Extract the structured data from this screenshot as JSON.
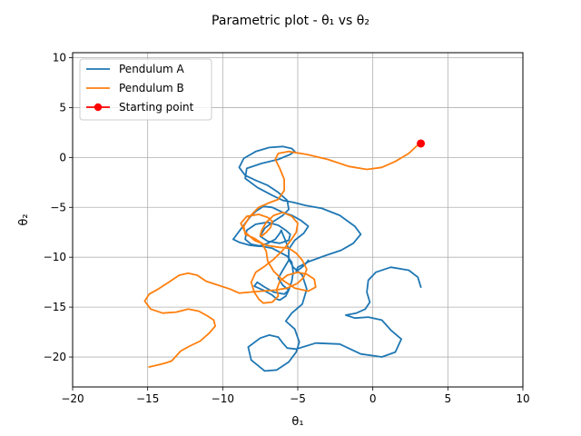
{
  "chart_data": {
    "type": "line",
    "title": "Parametric plot - θ₁ vs θ₂",
    "xlabel": "θ₁",
    "ylabel": "θ₂",
    "xlim": [
      -20,
      10
    ],
    "ylim": [
      -23,
      10.5
    ],
    "x_ticks": [
      -20,
      -15,
      -10,
      -5,
      0,
      5,
      10
    ],
    "y_ticks": [
      -20,
      -15,
      -10,
      -5,
      0,
      5,
      10
    ],
    "x_tick_labels": [
      "−20",
      "−15",
      "−10",
      "−5",
      "0",
      "5",
      "10"
    ],
    "y_tick_labels": [
      "−20",
      "−15",
      "−10",
      "−5",
      "0",
      "5",
      "10"
    ],
    "grid": true,
    "legend_position": "top-left",
    "series": [
      {
        "name": "Pendulum A",
        "color": "#1f77b4",
        "x": [
          3.2,
          3.0,
          2.4,
          1.2,
          0.2,
          -0.3,
          -0.4,
          -0.2,
          -0.5,
          -1.1,
          -1.8,
          -1.2,
          -0.3,
          0.6,
          1.2,
          1.9,
          1.5,
          0.6,
          -0.8,
          -2.2,
          -3.8,
          -5.1,
          -5.7,
          -6.0,
          -6.3,
          -6.9,
          -7.5,
          -8.3,
          -8.1,
          -7.2,
          -6.4,
          -5.6,
          -5.1,
          -4.9,
          -5.2,
          -5.8,
          -5.4,
          -4.7,
          -4.4,
          -4.7,
          -5.3,
          -5.6,
          -5.6,
          -5.2,
          -4.6,
          -4.3,
          -4.8,
          -5.4,
          -6.0,
          -6.7,
          -7.3,
          -7.8,
          -8.2,
          -8.7,
          -9.1,
          -9.3,
          -8.9,
          -8.2,
          -7.6,
          -7.0,
          -6.5,
          -6.2,
          -6.1,
          -6.0,
          -5.8,
          -5.6,
          -5.6,
          -6.0,
          -6.3,
          -6.0,
          -5.6,
          -5.9,
          -6.6,
          -7.2,
          -7.7,
          -7.9,
          -7.3,
          -6.7,
          -6.4,
          -6.2,
          -5.8,
          -5.6,
          -5.4,
          -5.3,
          -5.4,
          -5.7,
          -6.2,
          -6.7,
          -7.4,
          -8.1,
          -8.5,
          -8.4,
          -7.8,
          -7.0,
          -6.3,
          -5.8,
          -5.5,
          -5.6,
          -6.2,
          -7.0,
          -7.5,
          -7.2,
          -6.6,
          -6.0,
          -5.6,
          -5.7,
          -6.3,
          -7.0,
          -7.8,
          -8.5,
          -8.9,
          -8.6,
          -7.8,
          -6.9,
          -6.0,
          -5.4,
          -5.2,
          -5.5,
          -6.3,
          -7.4,
          -8.4,
          -8.5,
          -7.7,
          -6.7,
          -6.0,
          -5.3,
          -4.5,
          -3.4,
          -2.2,
          -1.2,
          -0.8,
          -1.3,
          -2.1,
          -3.1,
          -4.2,
          -5.0,
          -5.1,
          -4.8,
          -4.5,
          -4.3
        ],
        "y": [
          -13.0,
          -12.0,
          -11.3,
          -11.0,
          -11.5,
          -12.3,
          -13.5,
          -14.5,
          -15.2,
          -15.6,
          -15.8,
          -16.1,
          -16.0,
          -16.3,
          -17.3,
          -18.2,
          -19.5,
          -20.0,
          -19.7,
          -18.7,
          -18.6,
          -19.2,
          -19.1,
          -18.6,
          -18.0,
          -17.8,
          -18.1,
          -19.0,
          -20.3,
          -21.4,
          -21.3,
          -20.5,
          -19.5,
          -18.5,
          -17.2,
          -16.4,
          -15.6,
          -14.7,
          -13.2,
          -11.8,
          -11.0,
          -10.2,
          -9.2,
          -8.3,
          -7.6,
          -6.9,
          -6.3,
          -5.8,
          -5.5,
          -5.0,
          -4.9,
          -5.4,
          -6.0,
          -7.0,
          -7.8,
          -8.2,
          -8.5,
          -8.8,
          -8.9,
          -8.6,
          -8.2,
          -7.6,
          -7.3,
          -7.7,
          -8.4,
          -9.2,
          -10.3,
          -11.3,
          -12.1,
          -12.8,
          -13.3,
          -13.7,
          -13.5,
          -13.0,
          -12.5,
          -12.9,
          -13.3,
          -13.8,
          -14.2,
          -14.3,
          -13.9,
          -13.3,
          -12.4,
          -11.5,
          -10.5,
          -9.9,
          -9.5,
          -9.1,
          -8.9,
          -8.7,
          -8.2,
          -7.3,
          -6.7,
          -6.5,
          -6.8,
          -7.3,
          -7.7,
          -8.3,
          -8.6,
          -8.4,
          -7.9,
          -7.1,
          -6.4,
          -5.8,
          -5.2,
          -4.3,
          -3.5,
          -2.8,
          -2.3,
          -1.8,
          -1.0,
          -0.1,
          0.6,
          1.0,
          1.1,
          0.9,
          0.6,
          0.3,
          -0.2,
          -0.6,
          -1.1,
          -2.1,
          -3.0,
          -3.8,
          -4.3,
          -4.5,
          -4.8,
          -5.1,
          -5.8,
          -6.9,
          -7.7,
          -8.6,
          -9.3,
          -9.8,
          -10.4,
          -11.0,
          -11.4,
          -11.1,
          -10.7,
          -10.3
        ]
      },
      {
        "name": "Pendulum B",
        "color": "#ff7f0e",
        "x": [
          3.1,
          2.4,
          1.5,
          0.6,
          -0.4,
          -1.6,
          -3.0,
          -4.4,
          -5.6,
          -6.3,
          -6.5,
          -6.2,
          -5.9,
          -5.9,
          -6.3,
          -7.0,
          -7.6,
          -8.2,
          -8.6,
          -8.5,
          -7.9,
          -7.4,
          -7.1,
          -7.0,
          -6.6,
          -6.0,
          -5.2,
          -4.3,
          -3.8,
          -3.9,
          -4.4,
          -5.0,
          -5.7,
          -6.2,
          -6.4,
          -6.3,
          -6.7,
          -7.3,
          -7.6,
          -7.9,
          -8.1,
          -7.8,
          -7.2,
          -6.6,
          -6.0,
          -5.5,
          -5.1,
          -5.0,
          -5.4,
          -6.0,
          -6.6,
          -7.1,
          -7.4,
          -7.5,
          -7.4,
          -7.1,
          -6.8,
          -6.7,
          -7.0,
          -7.6,
          -8.4,
          -8.8,
          -8.5,
          -7.9,
          -7.1,
          -6.3,
          -5.6,
          -5.1,
          -4.7,
          -4.4,
          -4.6,
          -5.0,
          -5.7,
          -6.5,
          -7.4,
          -8.2,
          -8.9,
          -9.5,
          -10.3,
          -11.1,
          -11.7,
          -12.3,
          -12.9,
          -13.6,
          -14.3,
          -14.9,
          -15.2,
          -14.8,
          -14.0,
          -13.1,
          -12.3,
          -11.6,
          -11.0,
          -10.6,
          -10.5,
          -10.9,
          -11.5,
          -12.2,
          -12.8,
          -13.1,
          -13.4,
          -13.8,
          -14.3,
          -14.9
        ],
        "y": [
          1.4,
          0.4,
          -0.4,
          -1.0,
          -1.2,
          -0.9,
          -0.2,
          0.3,
          0.6,
          0.4,
          -0.2,
          -1.1,
          -2.2,
          -3.3,
          -4.2,
          -4.6,
          -5.0,
          -5.9,
          -6.9,
          -7.7,
          -8.1,
          -8.6,
          -9.4,
          -10.4,
          -11.4,
          -12.3,
          -13.1,
          -13.4,
          -13.0,
          -12.2,
          -11.7,
          -11.5,
          -11.8,
          -12.4,
          -13.2,
          -13.9,
          -14.5,
          -14.6,
          -14.2,
          -13.5,
          -12.5,
          -11.5,
          -10.9,
          -10.2,
          -9.3,
          -8.4,
          -7.5,
          -6.6,
          -5.9,
          -5.5,
          -5.8,
          -6.5,
          -7.3,
          -7.8,
          -7.9,
          -7.5,
          -7.0,
          -6.4,
          -6.0,
          -5.7,
          -5.9,
          -6.6,
          -7.5,
          -8.3,
          -8.8,
          -9.0,
          -9.1,
          -9.6,
          -10.3,
          -11.2,
          -12.0,
          -12.6,
          -13.1,
          -13.3,
          -13.4,
          -13.5,
          -13.6,
          -13.2,
          -12.8,
          -12.4,
          -11.8,
          -11.6,
          -11.8,
          -12.5,
          -13.2,
          -13.7,
          -14.4,
          -15.2,
          -15.6,
          -15.5,
          -15.2,
          -15.4,
          -15.9,
          -16.3,
          -16.9,
          -17.6,
          -18.4,
          -18.9,
          -19.4,
          -19.9,
          -20.4,
          -20.6,
          -20.8,
          -21.0
        ]
      }
    ],
    "marker": {
      "name": "Starting point",
      "color": "#ff0000",
      "x": 3.2,
      "y": 1.4
    }
  }
}
